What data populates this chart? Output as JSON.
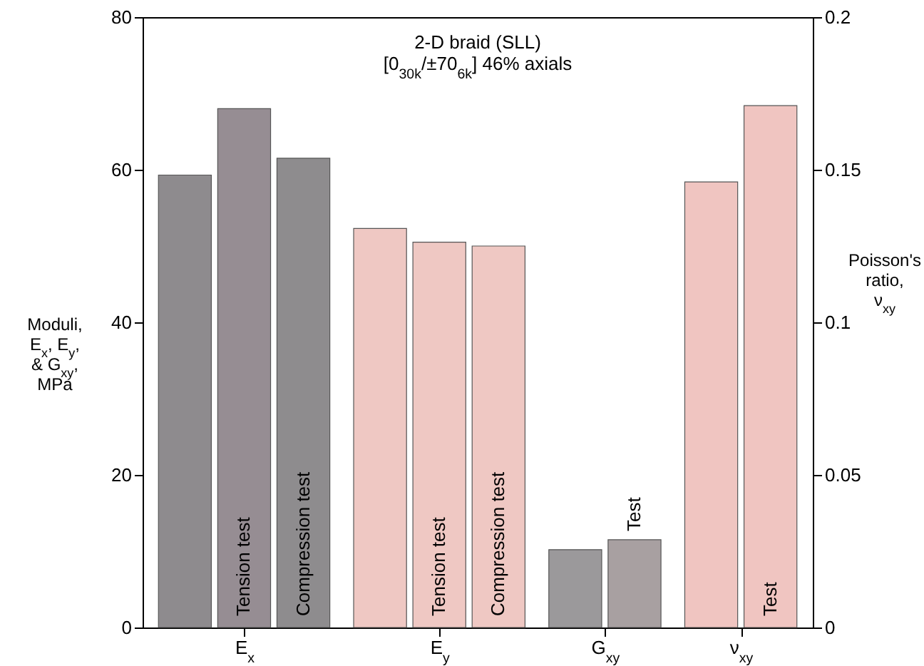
{
  "chart_data": {
    "type": "bar",
    "title": "2-D braid (SLL)\n[0$_{30k}$/±70$_{6k}$] 46% axials",
    "categories": [
      "E$_{x}$",
      "E$_{y}$",
      "G$_{xy}$",
      "ν$_{xy}$"
    ],
    "series": [
      {
        "colors": [
          "#8e8b8e",
          "#efc8c3",
          "#9b999b",
          null
        ],
        "values": [
          59.3,
          52.3,
          10.2,
          null
        ]
      },
      {
        "name": "Tension test",
        "colors": [
          "#968d93",
          "#efc8c3",
          null,
          null
        ],
        "values": [
          68,
          50.5,
          null,
          null
        ]
      },
      {
        "name": "Compression test",
        "colors": [
          "#8e8c8e",
          "#efc8c3",
          null,
          null
        ],
        "values": [
          61.5,
          50,
          null,
          null
        ]
      },
      {
        "name": "Test",
        "colors": [
          null,
          null,
          "#a8a0a1",
          null
        ],
        "values": [
          null,
          null,
          11.5,
          null
        ]
      },
      {
        "axis": "y2",
        "colors": [
          null,
          null,
          null,
          "#f0c5c1"
        ],
        "values": [
          null,
          null,
          null,
          0.146
        ]
      },
      {
        "name": "Test",
        "axis": "y2",
        "colors": [
          null,
          null,
          null,
          "#f0c5c1"
        ],
        "values": [
          null,
          null,
          null,
          0.171
        ]
      }
    ],
    "ylabel": "Moduli,\nE$_{x}$, E$_{y}$,\n& G$_{xy}$,\nMPa",
    "y2label": "Poisson's\nratio,\nν$_{xy}$",
    "ylim": [
      0,
      80
    ],
    "yticks": [
      0,
      20,
      40,
      60,
      80
    ],
    "y2lim": [
      0,
      0.2
    ],
    "y2ticks": [
      0,
      0.05,
      0.1,
      0.15,
      0.2
    ]
  }
}
